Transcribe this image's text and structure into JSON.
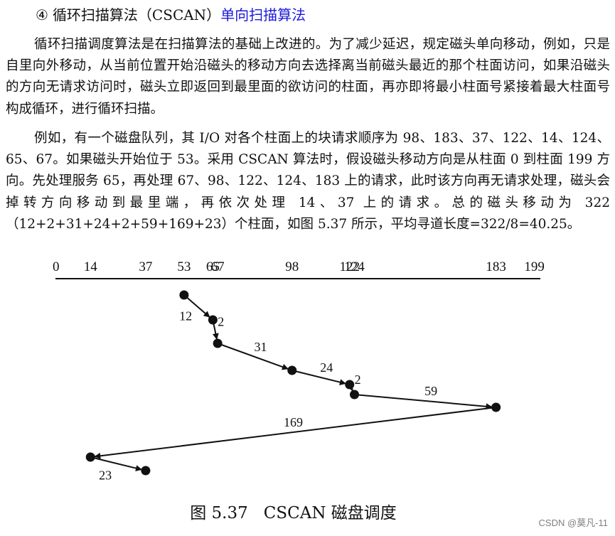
{
  "heading": {
    "number": "④",
    "title": "循环扫描算法（CSCAN）",
    "subtitle": "单向扫描算法"
  },
  "paragraphs": [
    "循环扫描调度算法是在扫描算法的基础上改进的。为了减少延迟，规定磁头单向移动，例如，只是自里向外移动，从当前位置开始沿磁头的移动方向去选择离当前磁头最近的那个柱面访问，如果沿磁头的方向无请求访问时，磁头立即返回到最里面的欲访问的柱面，再亦即将最小柱面号紧接着最大柱面号构成循环，进行循环扫描。",
    "例如，有一个磁盘队列，其 I/O 对各个柱面上的块请求顺序为 98、183、37、122、14、124、65、67。如果磁头开始位于 53。采用 CSCAN 算法时，假设磁头移动方向是从柱面 0 到柱面 199 方向。先处理服务 65，再处理 67、98、122、124、183 上的请求，此时该方向再无请求处理，磁头会掉转方向移动到最里端，再依次处理 14、37 上的请求。总的磁头移动为 322（12+2+31+24+2+59+169+23）个柱面，如图 5.37 所示，平均寻道长度=322/8=40.25。"
  ],
  "chart_data": {
    "type": "line",
    "title": "",
    "axis_ticks": [
      "0",
      "14",
      "37",
      "53",
      "65",
      "67",
      "98",
      "122",
      "124",
      "183",
      "199"
    ],
    "path": [
      53,
      65,
      67,
      98,
      122,
      124,
      183,
      14,
      37
    ],
    "segments": [
      "12",
      "2",
      "31",
      "24",
      "2",
      "59",
      "169",
      "23"
    ],
    "line_color": "#111111"
  },
  "caption": {
    "number": "图 5.37",
    "text": "CSCAN 磁盘调度"
  },
  "watermark": "CSDN @莫凡-11"
}
